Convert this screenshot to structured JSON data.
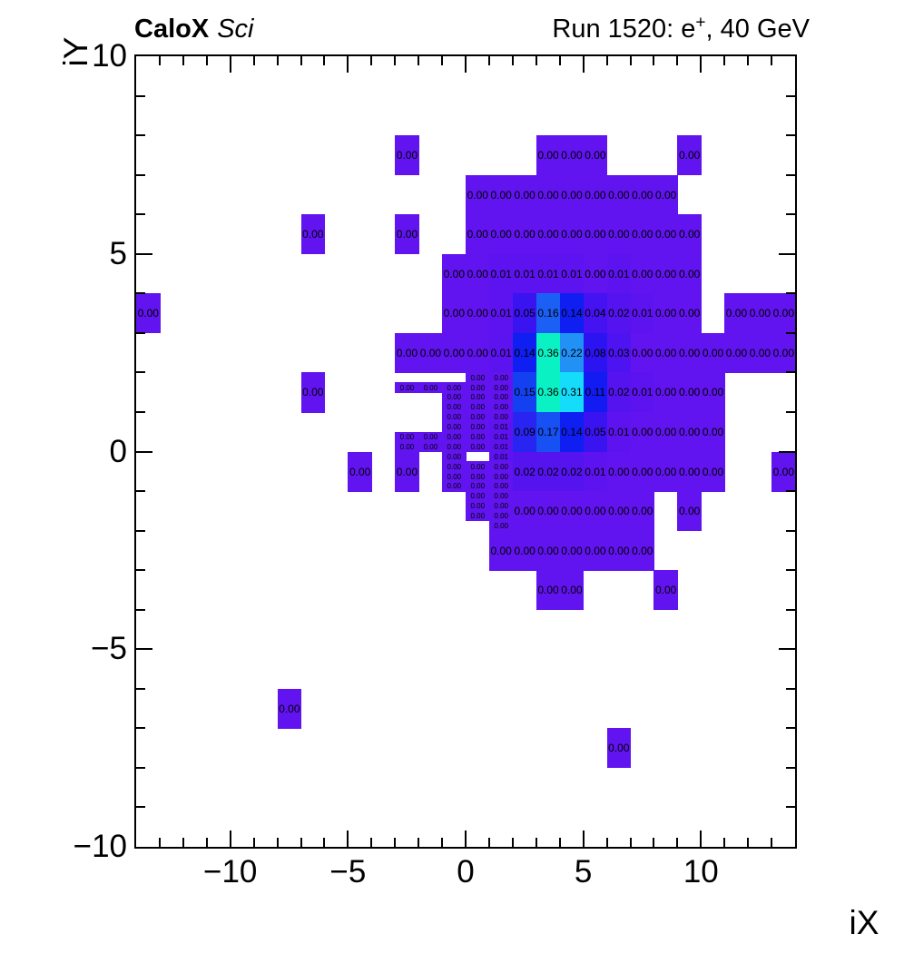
{
  "header": {
    "experiment": "CaloX",
    "detector": "Sci",
    "run_info": {
      "prefix": "Run 1520: e",
      "sup": "+",
      "suffix": ", 40 GeV"
    }
  },
  "chart_data": {
    "type": "heatmap",
    "title": "Run 1520: e+, 40 GeV",
    "xlabel": "iX",
    "ylabel": "iY",
    "x_range": [
      -14,
      14
    ],
    "y_range": [
      -10,
      10
    ],
    "x_ticks": [
      {
        "v": -10,
        "label": "−10"
      },
      {
        "v": -5,
        "label": "−5"
      },
      {
        "v": 0,
        "label": "0"
      },
      {
        "v": 5,
        "label": "5"
      },
      {
        "v": 10,
        "label": "10"
      }
    ],
    "y_ticks": [
      {
        "v": 10,
        "label": "10"
      },
      {
        "v": 5,
        "label": "5"
      },
      {
        "v": 0,
        "label": "0"
      },
      {
        "v": -5,
        "label": "−5"
      },
      {
        "v": -10,
        "label": "−10"
      }
    ],
    "zmax": 0.36,
    "palette": {
      "0.00": "#6114ef",
      "0.01": "#5d13f0",
      "0.02": "#5513f0",
      "0.03": "#4d13f1",
      "0.04": "#4513f1",
      "0.05": "#3a13f1",
      "0.08": "#2c13f1",
      "0.09": "#2824f2",
      "0.11": "#121bf2",
      "0.14": "#0f1ef1",
      "0.15": "#1341f2",
      "0.16": "#1c5ff4",
      "0.17": "#1750f3",
      "0.22": "#2191f6",
      "0.31": "#15dcfa",
      "0.36": "#0af2c4"
    },
    "rows": [
      {
        "iy": 7,
        "runs": [
          {
            "ix": -3,
            "values": [
              "0.00"
            ]
          },
          {
            "ix": 3,
            "values": [
              "0.00",
              "0.00",
              "0.00"
            ]
          },
          {
            "ix": 9,
            "values": [
              "0.00"
            ]
          }
        ]
      },
      {
        "iy": 6,
        "runs": [
          {
            "ix": 0,
            "values": [
              "0.00",
              "0.00",
              "0.00",
              "0.00",
              "0.00",
              "0.00",
              "0.00",
              "0.00",
              "0.00"
            ]
          }
        ]
      },
      {
        "iy": 5,
        "runs": [
          {
            "ix": -7,
            "values": [
              "0.00"
            ]
          },
          {
            "ix": -3,
            "values": [
              "0.00"
            ]
          },
          {
            "ix": 0,
            "values": [
              "0.00",
              "0.00",
              "0.00",
              "0.00",
              "0.00",
              "0.00",
              "0.00",
              "0.00",
              "0.00",
              "0.00"
            ]
          }
        ]
      },
      {
        "iy": 4,
        "runs": [
          {
            "ix": -1,
            "values": [
              "0.00",
              "0.00",
              "0.01",
              "0.01",
              "0.01",
              "0.01",
              "0.00",
              "0.01",
              "0.00",
              "0.00",
              "0.00"
            ]
          }
        ]
      },
      {
        "iy": 3,
        "runs": [
          {
            "ix": -14,
            "values": [
              "0.00"
            ]
          },
          {
            "ix": -1,
            "values": [
              "0.00",
              "0.00",
              "0.01",
              "0.05",
              "0.16",
              "0.14",
              "0.04",
              "0.02",
              "0.01",
              "0.00",
              "0.00"
            ]
          },
          {
            "ix": 11,
            "values": [
              "0.00",
              "0.00",
              "0.00"
            ]
          }
        ]
      },
      {
        "iy": 2,
        "runs": [
          {
            "ix": -3,
            "values": [
              "0.00",
              "0.00",
              "0.00",
              "0.00",
              "0.01",
              "0.14",
              "0.36",
              "0.22",
              "0.08",
              "0.03",
              "0.00",
              "0.00",
              "0.00",
              "0.00",
              "0.00",
              "0.00",
              "0.00"
            ]
          }
        ]
      },
      {
        "iy": 1,
        "runs": [
          {
            "ix": -7,
            "values": [
              "0.00"
            ]
          },
          {
            "ix": 2,
            "values": [
              "0.15",
              "0.36",
              "0.31",
              "0.11",
              "0.02",
              "0.01",
              "0.00",
              "0.00",
              "0.00"
            ]
          }
        ]
      },
      {
        "iy": 0,
        "runs": [
          {
            "ix": 2,
            "values": [
              "0.09",
              "0.17",
              "0.14",
              "0.05",
              "0.01",
              "0.00",
              "0.00",
              "0.00",
              "0.00"
            ]
          }
        ]
      },
      {
        "iy": -1,
        "runs": [
          {
            "ix": -5,
            "values": [
              "0.00"
            ]
          },
          {
            "ix": -3,
            "values": [
              "0.00"
            ]
          },
          {
            "ix": 2,
            "values": [
              "0.02",
              "0.02",
              "0.02",
              "0.01",
              "0.00",
              "0.00",
              "0.00",
              "0.00",
              "0.00"
            ]
          },
          {
            "ix": 13,
            "values": [
              "0.00"
            ]
          }
        ]
      },
      {
        "iy": -2,
        "runs": [
          {
            "ix": 2,
            "values": [
              "0.00",
              "0.00",
              "0.00",
              "0.00",
              "0.00",
              "0.00"
            ]
          },
          {
            "ix": 9,
            "values": [
              "0.00"
            ]
          }
        ]
      },
      {
        "iy": -3,
        "runs": [
          {
            "ix": 1,
            "values": [
              "0.00",
              "0.00",
              "0.00",
              "0.00",
              "0.00",
              "0.00",
              "0.00"
            ]
          }
        ]
      },
      {
        "iy": -4,
        "runs": [
          {
            "ix": 3,
            "values": [
              "0.00",
              "0.00"
            ]
          },
          {
            "ix": 8,
            "values": [
              "0.00"
            ]
          }
        ]
      },
      {
        "iy": -7,
        "runs": [
          {
            "ix": -8,
            "values": [
              "0.00"
            ]
          }
        ]
      },
      {
        "iy": -8,
        "runs": [
          {
            "ix": 6,
            "values": [
              "0.00"
            ]
          }
        ]
      }
    ],
    "fine_cells": {
      "cell_w": 1,
      "cell_h": 0.25,
      "cells": [
        [
          -3,
          1.75,
          "0.00"
        ],
        [
          -3,
          0.5,
          "0.00"
        ],
        [
          -3,
          0.25,
          "0.00"
        ],
        [
          -2,
          1.75,
          "0.00"
        ],
        [
          -2,
          0.5,
          "0.00"
        ],
        [
          -2,
          0.25,
          "0.00"
        ],
        [
          -1,
          1.75,
          "0.00"
        ],
        [
          -1,
          1.5,
          "0.00"
        ],
        [
          -1,
          1.25,
          "0.00"
        ],
        [
          -1,
          1,
          "0.00"
        ],
        [
          -1,
          0.75,
          "0.00"
        ],
        [
          -1,
          0.5,
          "0.00"
        ],
        [
          -1,
          0.25,
          "0.00"
        ],
        [
          -1,
          0,
          "0.00"
        ],
        [
          -1,
          -0.25,
          "0.00"
        ],
        [
          -1,
          -0.5,
          "0.00"
        ],
        [
          -1,
          -0.75,
          "0.00"
        ],
        [
          0,
          2,
          "0.00"
        ],
        [
          0,
          1.75,
          "0.00"
        ],
        [
          0,
          1.5,
          "0.00"
        ],
        [
          0,
          1.25,
          "0.00"
        ],
        [
          0,
          1,
          "0.00"
        ],
        [
          0,
          0.75,
          "0.00"
        ],
        [
          0,
          0.5,
          "0.00"
        ],
        [
          0,
          0.25,
          "0.00"
        ],
        [
          0,
          -0.25,
          "0.00"
        ],
        [
          0,
          -0.5,
          "0.00"
        ],
        [
          0,
          -0.75,
          "0.00"
        ],
        [
          0,
          -1,
          "0.00"
        ],
        [
          0,
          -1.25,
          "0.00"
        ],
        [
          0,
          -1.5,
          "0.00"
        ],
        [
          1,
          2,
          "0.00"
        ],
        [
          1,
          1.75,
          "0.00"
        ],
        [
          1,
          1.5,
          "0.00"
        ],
        [
          1,
          1.25,
          "0.00"
        ],
        [
          1,
          1,
          "0.00"
        ],
        [
          1,
          0.75,
          "0.01"
        ],
        [
          1,
          0.5,
          "0.01"
        ],
        [
          1,
          0.25,
          "0.01"
        ],
        [
          1,
          0,
          "0.01"
        ],
        [
          1,
          -0.25,
          "0.00"
        ],
        [
          1,
          -0.5,
          "0.00"
        ],
        [
          1,
          -0.75,
          "0.00"
        ],
        [
          1,
          -1,
          "0.00"
        ],
        [
          1,
          -1.25,
          "0.00"
        ],
        [
          1,
          -1.5,
          "0.00"
        ],
        [
          1,
          -1.75,
          "0.00"
        ]
      ]
    }
  }
}
